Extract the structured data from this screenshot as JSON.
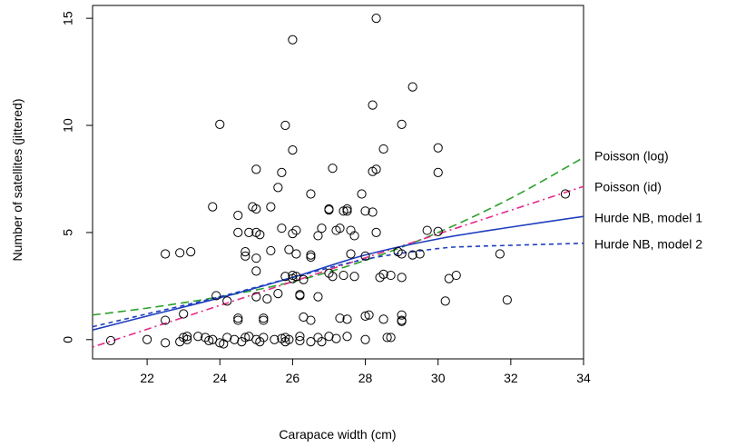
{
  "chart_data": {
    "type": "scatter",
    "xlabel": "Carapace width (cm)",
    "ylabel": "Number of satellites (jittered)",
    "xlim": [
      20.5,
      34
    ],
    "ylim": [
      -0.9,
      15.6
    ],
    "xticks": [
      "22",
      "24",
      "26",
      "28",
      "30",
      "32",
      "34"
    ],
    "yticks": [
      "0",
      "5",
      "10",
      "15"
    ],
    "grid": false,
    "points": [
      [
        21.0,
        -0.05
      ],
      [
        22.0,
        0.0
      ],
      [
        22.5,
        4.0
      ],
      [
        22.5,
        0.9
      ],
      [
        22.5,
        -0.15
      ],
      [
        22.9,
        4.05
      ],
      [
        22.9,
        -0.1
      ],
      [
        23.0,
        0.1
      ],
      [
        23.0,
        1.2
      ],
      [
        23.1,
        0.15
      ],
      [
        23.1,
        0.0
      ],
      [
        23.2,
        4.1
      ],
      [
        23.4,
        0.15
      ],
      [
        23.6,
        0.1
      ],
      [
        23.7,
        -0.05
      ],
      [
        23.8,
        0.0
      ],
      [
        23.8,
        6.2
      ],
      [
        23.9,
        2.05
      ],
      [
        24.0,
        10.05
      ],
      [
        24.0,
        -0.15
      ],
      [
        24.1,
        -0.2
      ],
      [
        24.2,
        0.1
      ],
      [
        24.2,
        1.8
      ],
      [
        24.4,
        0.0
      ],
      [
        24.5,
        5.8
      ],
      [
        24.5,
        5.0
      ],
      [
        24.5,
        1.0
      ],
      [
        24.5,
        0.9
      ],
      [
        24.6,
        -0.1
      ],
      [
        24.7,
        4.1
      ],
      [
        24.7,
        3.9
      ],
      [
        24.7,
        0.1
      ],
      [
        24.8,
        5.0
      ],
      [
        24.8,
        0.15
      ],
      [
        24.9,
        6.2
      ],
      [
        25.0,
        7.95
      ],
      [
        25.0,
        6.1
      ],
      [
        25.0,
        5.0
      ],
      [
        25.0,
        3.8
      ],
      [
        25.0,
        3.2
      ],
      [
        25.0,
        2.0
      ],
      [
        25.0,
        0.0
      ],
      [
        25.1,
        4.9
      ],
      [
        25.1,
        -0.1
      ],
      [
        25.2,
        0.9
      ],
      [
        25.2,
        1.0
      ],
      [
        25.2,
        0.1
      ],
      [
        25.3,
        1.9
      ],
      [
        25.4,
        4.15
      ],
      [
        25.4,
        6.2
      ],
      [
        25.5,
        0.0
      ],
      [
        25.6,
        7.1
      ],
      [
        25.6,
        2.15
      ],
      [
        25.7,
        7.8
      ],
      [
        25.7,
        5.2
      ],
      [
        25.7,
        0.05
      ],
      [
        25.8,
        10.0
      ],
      [
        25.8,
        2.95
      ],
      [
        25.8,
        0.1
      ],
      [
        25.8,
        -0.1
      ],
      [
        25.9,
        4.2
      ],
      [
        25.9,
        0.0
      ],
      [
        26.0,
        14.0
      ],
      [
        26.0,
        8.85
      ],
      [
        26.0,
        4.95
      ],
      [
        26.0,
        3.0
      ],
      [
        26.0,
        2.85
      ],
      [
        26.1,
        5.1
      ],
      [
        26.1,
        4.0
      ],
      [
        26.1,
        2.95
      ],
      [
        26.2,
        2.1
      ],
      [
        26.2,
        2.05
      ],
      [
        26.2,
        0.15
      ],
      [
        26.2,
        -0.05
      ],
      [
        26.3,
        1.05
      ],
      [
        26.3,
        2.8
      ],
      [
        26.5,
        6.8
      ],
      [
        26.5,
        3.95
      ],
      [
        26.5,
        3.85
      ],
      [
        26.5,
        0.9
      ],
      [
        26.5,
        -0.1
      ],
      [
        26.7,
        4.85
      ],
      [
        26.7,
        2.0
      ],
      [
        26.7,
        0.1
      ],
      [
        26.8,
        5.2
      ],
      [
        26.8,
        -0.1
      ],
      [
        27.0,
        6.1
      ],
      [
        27.0,
        6.05
      ],
      [
        27.0,
        3.1
      ],
      [
        27.0,
        0.15
      ],
      [
        27.1,
        8.0
      ],
      [
        27.1,
        2.95
      ],
      [
        27.2,
        5.1
      ],
      [
        27.2,
        0.05
      ],
      [
        27.3,
        5.2
      ],
      [
        27.3,
        1.0
      ],
      [
        27.4,
        6.0
      ],
      [
        27.4,
        3.0
      ],
      [
        27.5,
        6.1
      ],
      [
        27.5,
        6.0
      ],
      [
        27.5,
        0.95
      ],
      [
        27.5,
        0.15
      ],
      [
        27.6,
        4.0
      ],
      [
        27.6,
        5.1
      ],
      [
        27.7,
        4.85
      ],
      [
        27.7,
        2.95
      ],
      [
        27.9,
        6.8
      ],
      [
        28.0,
        6.0
      ],
      [
        28.0,
        3.9
      ],
      [
        28.0,
        1.1
      ],
      [
        28.0,
        0.0
      ],
      [
        28.1,
        1.15
      ],
      [
        28.2,
        10.95
      ],
      [
        28.2,
        7.85
      ],
      [
        28.2,
        5.95
      ],
      [
        28.3,
        15.0
      ],
      [
        28.3,
        7.95
      ],
      [
        28.3,
        5.0
      ],
      [
        28.4,
        2.9
      ],
      [
        28.5,
        8.9
      ],
      [
        28.5,
        3.05
      ],
      [
        28.5,
        0.95
      ],
      [
        28.6,
        0.1
      ],
      [
        28.7,
        3.0
      ],
      [
        28.7,
        0.1
      ],
      [
        28.9,
        4.1
      ],
      [
        29.0,
        10.05
      ],
      [
        29.0,
        4.0
      ],
      [
        29.0,
        2.9
      ],
      [
        29.0,
        1.15
      ],
      [
        29.0,
        0.9
      ],
      [
        29.0,
        0.85
      ],
      [
        29.3,
        11.8
      ],
      [
        29.3,
        3.95
      ],
      [
        29.5,
        4.0
      ],
      [
        29.7,
        5.1
      ],
      [
        30.0,
        8.95
      ],
      [
        30.0,
        7.8
      ],
      [
        30.0,
        5.05
      ],
      [
        30.2,
        1.8
      ],
      [
        30.3,
        2.85
      ],
      [
        30.5,
        3.0
      ],
      [
        31.7,
        4.0
      ],
      [
        31.9,
        1.85
      ],
      [
        33.5,
        6.8
      ]
    ],
    "series": [
      {
        "name": "Poisson (log)",
        "color": "#2ca02c",
        "dash": "long-dash",
        "x": [
          20.5,
          22,
          24,
          26,
          28,
          30,
          32,
          34
        ],
        "y": [
          1.15,
          1.47,
          2.0,
          2.7,
          3.7,
          5.0,
          6.6,
          8.5
        ]
      },
      {
        "name": "Poisson (id)",
        "color": "#e7298a",
        "dash": "dot-dash",
        "x": [
          20.5,
          34
        ],
        "y": [
          -0.35,
          7.15
        ]
      },
      {
        "name": "Hurde NB, model 1",
        "color": "#1f3fbf",
        "dash": "solid",
        "x": [
          20.5,
          22,
          24,
          26,
          28,
          30,
          32,
          34
        ],
        "y": [
          0.45,
          1.1,
          1.95,
          2.9,
          3.95,
          4.7,
          5.25,
          5.75
        ]
      },
      {
        "name": "Hurde NB, model 2",
        "color": "#1f3fbf",
        "dash": "short-dash",
        "x": [
          20.5,
          22,
          24,
          26,
          28,
          30,
          31,
          32,
          34
        ],
        "y": [
          0.6,
          1.2,
          2.0,
          2.9,
          3.75,
          4.25,
          4.35,
          4.4,
          4.5
        ]
      }
    ]
  }
}
